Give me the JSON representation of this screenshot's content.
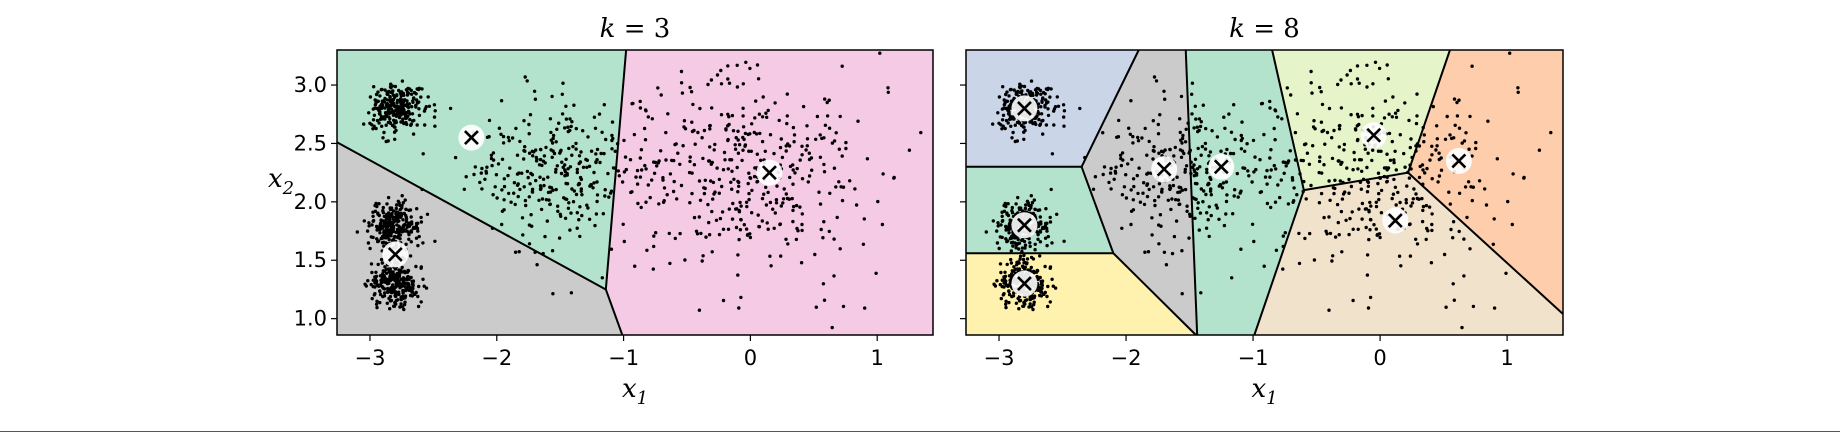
{
  "chart_data": [
    {
      "type": "scatter",
      "title": "k = 3",
      "title_parts": {
        "var": "k",
        "eq": " = ",
        "num": "3"
      },
      "xlabel": {
        "var": "x",
        "sub": "1"
      },
      "ylabel": {
        "var": "x",
        "sub": "2"
      },
      "xlim": [
        -3.26,
        1.44
      ],
      "ylim": [
        0.86,
        3.3
      ],
      "xticks": [
        -3,
        -2,
        -1,
        0,
        1
      ],
      "xtick_labels": [
        "−3",
        "−2",
        "−1",
        "0",
        "1"
      ],
      "yticks": [
        1.0,
        1.5,
        2.0,
        2.5,
        3.0
      ],
      "ytick_labels": [
        "1.0",
        "1.5",
        "2.0",
        "2.5",
        "3.0"
      ],
      "grid": false,
      "centroids": [
        [
          -2.2,
          2.55
        ],
        [
          -2.8,
          1.55
        ],
        [
          0.15,
          2.25
        ]
      ],
      "regions": [
        {
          "color": "#b3e2cd",
          "polygon": [
            [
              -3.26,
              2.51
            ],
            [
              -1.14,
              1.25
            ],
            [
              -0.98,
              3.3
            ],
            [
              -3.26,
              3.3
            ]
          ]
        },
        {
          "color": "#cbcbcb",
          "polygon": [
            [
              -3.26,
              0.86
            ],
            [
              -1.01,
              0.86
            ],
            [
              -1.14,
              1.25
            ],
            [
              -3.26,
              2.51
            ]
          ]
        },
        {
          "color": "#f4cae4",
          "polygon": [
            [
              -0.98,
              3.3
            ],
            [
              1.44,
              3.3
            ],
            [
              1.44,
              0.86
            ],
            [
              -1.01,
              0.86
            ],
            [
              -1.14,
              1.25
            ]
          ]
        }
      ],
      "boundaries": [
        [
          [
            -3.26,
            2.51
          ],
          [
            -1.14,
            1.25
          ]
        ],
        [
          [
            -1.14,
            1.25
          ],
          [
            -0.98,
            3.3
          ]
        ],
        [
          [
            -1.14,
            1.25
          ],
          [
            -1.01,
            0.86
          ]
        ]
      ],
      "point_clusters": [
        {
          "center": [
            -2.8,
            2.8
          ],
          "spread": [
            0.1,
            0.1
          ],
          "n": 260
        },
        {
          "center": [
            -2.8,
            1.8
          ],
          "spread": [
            0.1,
            0.1
          ],
          "n": 260
        },
        {
          "center": [
            -2.8,
            1.3
          ],
          "spread": [
            0.1,
            0.1
          ],
          "n": 260
        },
        {
          "center": [
            -1.5,
            2.25
          ],
          "spread": [
            0.38,
            0.32
          ],
          "n": 320
        },
        {
          "center": [
            0.0,
            2.25
          ],
          "spread": [
            0.5,
            0.42
          ],
          "n": 400
        }
      ],
      "point_seed": 7
    },
    {
      "type": "scatter",
      "title": "k = 8",
      "title_parts": {
        "var": "k",
        "eq": " = ",
        "num": "8"
      },
      "xlabel": {
        "var": "x",
        "sub": "1"
      },
      "xlim": [
        -3.26,
        1.44
      ],
      "ylim": [
        0.86,
        3.3
      ],
      "xticks": [
        -3,
        -2,
        -1,
        0,
        1
      ],
      "xtick_labels": [
        "−3",
        "−2",
        "−1",
        "0",
        "1"
      ],
      "yticks": [
        1.0,
        1.5,
        2.0,
        2.5,
        3.0
      ],
      "grid": false,
      "centroids": [
        [
          -2.8,
          2.8
        ],
        [
          -2.8,
          1.8
        ],
        [
          -2.8,
          1.3
        ],
        [
          -1.7,
          2.28
        ],
        [
          -1.25,
          2.3
        ],
        [
          -0.05,
          2.57
        ],
        [
          0.62,
          2.35
        ],
        [
          0.12,
          1.84
        ]
      ],
      "regions": [
        {
          "color": "#cbd5e8",
          "polygon": [
            [
              -3.26,
              3.3
            ],
            [
              -1.9,
              3.3
            ],
            [
              -2.35,
              2.3
            ],
            [
              -3.26,
              2.3
            ]
          ]
        },
        {
          "color": "#b3e2cd",
          "polygon": [
            [
              -3.26,
              2.3
            ],
            [
              -2.35,
              2.3
            ],
            [
              -2.1,
              1.56
            ],
            [
              -3.26,
              1.56
            ]
          ]
        },
        {
          "color": "#fff2ae",
          "polygon": [
            [
              -3.26,
              1.56
            ],
            [
              -2.1,
              1.56
            ],
            [
              -1.45,
              0.86
            ],
            [
              -3.26,
              0.86
            ]
          ]
        },
        {
          "color": "#cbcbcb",
          "polygon": [
            [
              -1.9,
              3.3
            ],
            [
              -1.53,
              3.3
            ],
            [
              -1.44,
              0.86
            ],
            [
              -1.45,
              0.86
            ],
            [
              -2.1,
              1.56
            ],
            [
              -2.35,
              2.3
            ]
          ]
        },
        {
          "color": "#b3e2cd",
          "polygon": [
            [
              -1.53,
              3.3
            ],
            [
              -0.85,
              3.3
            ],
            [
              -0.6,
              2.1
            ],
            [
              -0.99,
              0.86
            ],
            [
              -1.44,
              0.86
            ]
          ]
        },
        {
          "color": "#e6f5c9",
          "polygon": [
            [
              -0.85,
              3.3
            ],
            [
              0.55,
              3.3
            ],
            [
              0.22,
              2.25
            ],
            [
              -0.6,
              2.1
            ]
          ]
        },
        {
          "color": "#fdcdac",
          "polygon": [
            [
              0.55,
              3.3
            ],
            [
              1.44,
              3.3
            ],
            [
              1.44,
              1.04
            ],
            [
              0.22,
              2.25
            ]
          ]
        },
        {
          "color": "#f1e2cc",
          "polygon": [
            [
              -0.6,
              2.1
            ],
            [
              0.22,
              2.25
            ],
            [
              1.44,
              1.04
            ],
            [
              1.44,
              0.86
            ],
            [
              -0.99,
              0.86
            ]
          ]
        }
      ],
      "boundaries": [
        [
          [
            -3.26,
            2.3
          ],
          [
            -2.35,
            2.3
          ]
        ],
        [
          [
            -2.35,
            2.3
          ],
          [
            -1.9,
            3.3
          ]
        ],
        [
          [
            -3.26,
            1.56
          ],
          [
            -2.1,
            1.56
          ]
        ],
        [
          [
            -2.35,
            2.3
          ],
          [
            -2.1,
            1.56
          ]
        ],
        [
          [
            -2.1,
            1.56
          ],
          [
            -1.45,
            0.86
          ]
        ],
        [
          [
            -1.53,
            3.3
          ],
          [
            -1.44,
            0.86
          ]
        ],
        [
          [
            -0.85,
            3.3
          ],
          [
            -0.6,
            2.1
          ]
        ],
        [
          [
            -0.6,
            2.1
          ],
          [
            -0.99,
            0.86
          ]
        ],
        [
          [
            -0.6,
            2.1
          ],
          [
            0.22,
            2.25
          ]
        ],
        [
          [
            0.22,
            2.25
          ],
          [
            0.55,
            3.3
          ]
        ],
        [
          [
            0.22,
            2.25
          ],
          [
            1.44,
            1.04
          ]
        ]
      ],
      "point_clusters": [
        {
          "center": [
            -2.8,
            2.8
          ],
          "spread": [
            0.1,
            0.1
          ],
          "n": 260
        },
        {
          "center": [
            -2.8,
            1.8
          ],
          "spread": [
            0.1,
            0.1
          ],
          "n": 260
        },
        {
          "center": [
            -2.8,
            1.3
          ],
          "spread": [
            0.1,
            0.1
          ],
          "n": 260
        },
        {
          "center": [
            -1.5,
            2.25
          ],
          "spread": [
            0.38,
            0.32
          ],
          "n": 320
        },
        {
          "center": [
            0.0,
            2.25
          ],
          "spread": [
            0.5,
            0.42
          ],
          "n": 400
        }
      ],
      "point_seed": 7
    }
  ]
}
